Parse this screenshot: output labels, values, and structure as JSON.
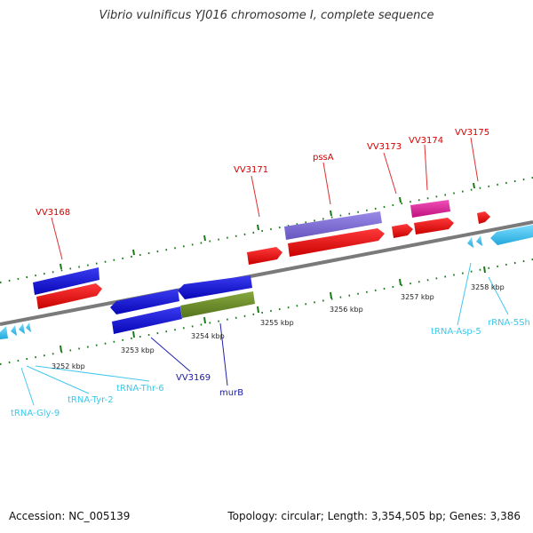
{
  "title": "Vibrio vulnificus YJ016 chromosome I, complete sequence",
  "footer": {
    "accession": "Accession: NC_005139",
    "summary": "Topology: circular; Length: 3,354,505 bp; Genes: 3,386"
  },
  "kbp_labels": [
    "3252 kbp",
    "3253 kbp",
    "3254 kbp",
    "3255 kbp",
    "3256 kbp",
    "3257 kbp",
    "3258 kbp"
  ],
  "gene_labels": {
    "vv3168": "VV3168",
    "vv3171": "VV3171",
    "pssA": "pssA",
    "vv3173": "VV3173",
    "vv3174": "VV3174",
    "vv3175": "VV3175",
    "vv3169": "VV3169",
    "murB": "murB",
    "tRNA_Asp_5": "tRNA-Asp-5",
    "rRNA_5Sh": "rRNA-5Sh",
    "tRNA_Thr_6": "tRNA-Thr-6",
    "tRNA_Tyr_2": "tRNA-Tyr-2",
    "tRNA_Gly_9": "tRNA-Gly-9"
  },
  "colors": {
    "cds_blue": "#1010d8",
    "cds_red": "#ee1010",
    "cds_purple": "#7a6ad0",
    "cds_magenta": "#e0209a",
    "cds_olive": "#6b8c2a",
    "rna_cyan": "#44c8f0",
    "backbone": "#808080",
    "tick_green": "#1a7a1a"
  }
}
